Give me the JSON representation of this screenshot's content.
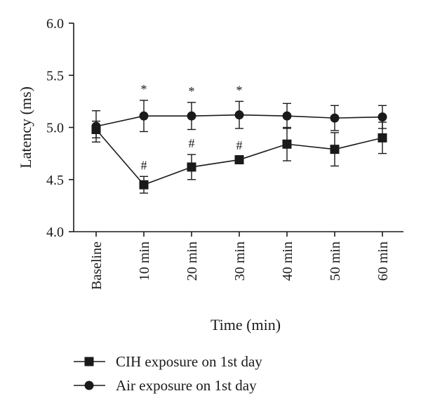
{
  "chart_data": {
    "type": "line",
    "title": "",
    "xlabel": "Time (min)",
    "ylabel": "Latency (ms)",
    "categories": [
      "Baseline",
      "10 min",
      "20 min",
      "30 min",
      "40 min",
      "50 min",
      "60 min"
    ],
    "ylim": [
      4.0,
      6.0
    ],
    "yticks": [
      "4.0",
      "4.5",
      "5.0",
      "5.5",
      "6.0"
    ],
    "grid": false,
    "legend_position": "bottom",
    "series": [
      {
        "name": "CIH exposure on 1st day",
        "marker": "square",
        "color": "#1a1a1a",
        "values": [
          4.98,
          4.45,
          4.62,
          4.69,
          4.84,
          4.79,
          4.9
        ],
        "errors": [
          0.08,
          0.08,
          0.12,
          0.03,
          0.16,
          0.16,
          0.15
        ],
        "annotations": [
          "",
          "#",
          "#",
          "#",
          "",
          "",
          ""
        ]
      },
      {
        "name": "Air exposure on 1st day",
        "marker": "circle",
        "color": "#1a1a1a",
        "values": [
          5.01,
          5.11,
          5.11,
          5.12,
          5.11,
          5.09,
          5.1
        ],
        "errors": [
          0.15,
          0.15,
          0.13,
          0.13,
          0.12,
          0.12,
          0.11
        ],
        "annotations": [
          "",
          "*",
          "*",
          "*",
          "",
          "",
          ""
        ]
      }
    ]
  }
}
